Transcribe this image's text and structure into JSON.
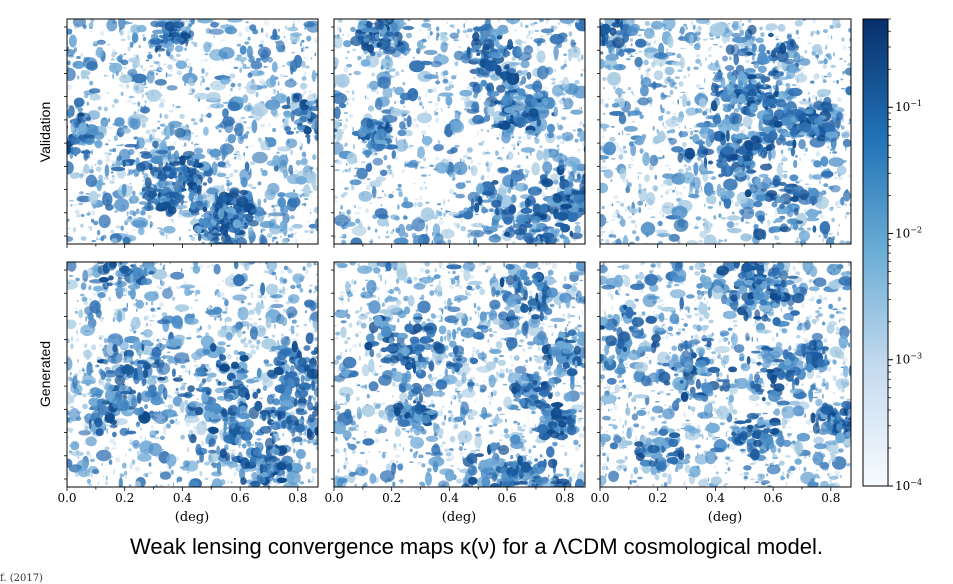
{
  "chart_data": {
    "type": "heatmap",
    "layout": {
      "rows": 2,
      "cols": 3
    },
    "row_labels": [
      "Validation",
      "Generated"
    ],
    "xlabel": "(deg)",
    "xticks": [
      "0.0",
      "0.2",
      "0.4",
      "0.6",
      "0.8"
    ],
    "xlim": [
      0.0,
      0.87
    ],
    "colorbar": {
      "scale": "log",
      "range": [
        0.0001,
        0.5
      ],
      "ticks": [
        {
          "base": "10",
          "exp": "−4",
          "value": 0.0001
        },
        {
          "base": "10",
          "exp": "−3",
          "value": 0.001
        },
        {
          "base": "10",
          "exp": "−2",
          "value": 0.01
        },
        {
          "base": "10",
          "exp": "−1",
          "value": 0.1
        }
      ],
      "colormap": [
        "#f7fbff",
        "#c6dbef",
        "#6baed6",
        "#2171b5",
        "#08306b"
      ]
    }
  },
  "caption": "Weak lensing convergence maps κ(ν) for a ΛCDM cosmological model.",
  "fragment_text": "f. (2017)"
}
